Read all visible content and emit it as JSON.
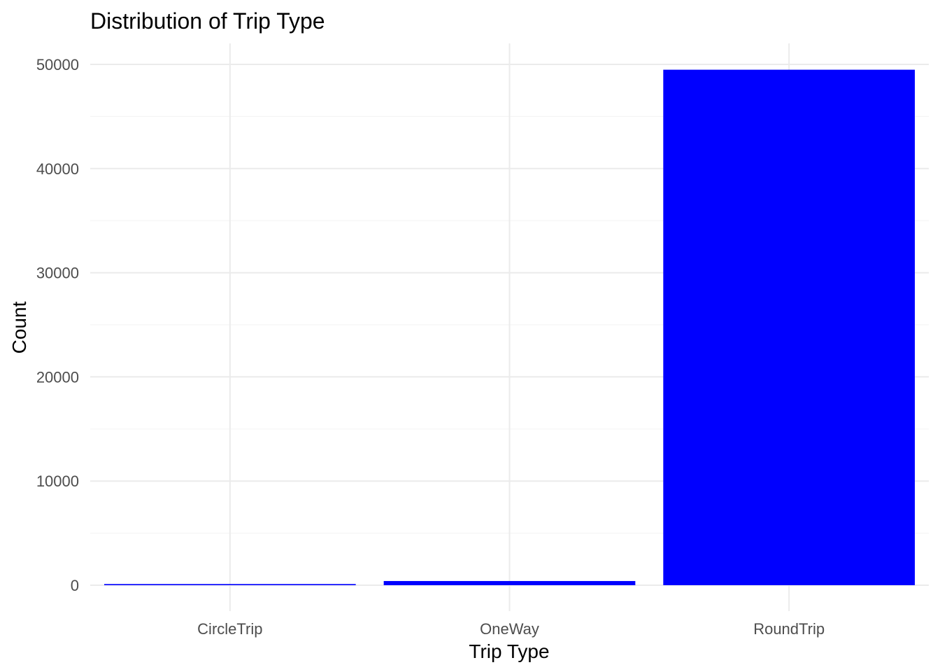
{
  "chart_data": {
    "type": "bar",
    "title": "Distribution of Trip Type",
    "xlabel": "Trip Type",
    "ylabel": "Count",
    "categories": [
      "CircleTrip",
      "OneWay",
      "RoundTrip"
    ],
    "values": [
      110,
      400,
      49490
    ],
    "ylim": [
      0,
      52000
    ],
    "yticks": [
      0,
      10000,
      20000,
      30000,
      40000,
      50000
    ],
    "ytick_labels": [
      "0",
      "10000",
      "20000",
      "30000",
      "40000",
      "50000"
    ],
    "grid": true,
    "legend": "none",
    "bar_color": "#0000ff",
    "grid_major_color": "#ebebeb",
    "grid_minor_color": "#f5f5f5"
  }
}
